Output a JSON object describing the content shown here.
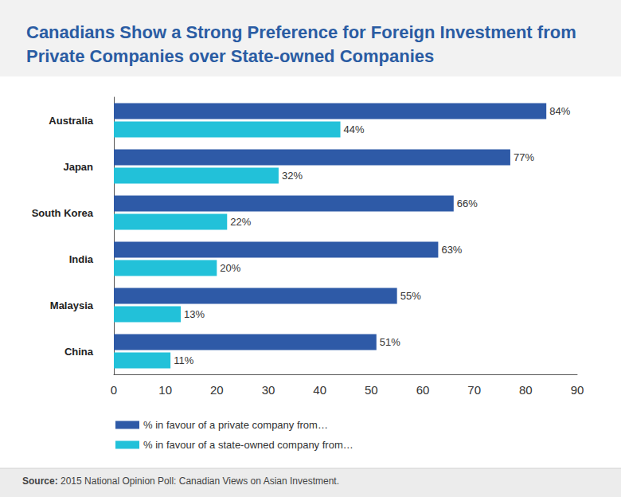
{
  "chart_data": {
    "type": "bar",
    "orientation": "horizontal",
    "title": "Canadians Show a Strong Preference for Foreign Investment from Private Companies over State-owned Companies",
    "categories": [
      "Australia",
      "Japan",
      "South Korea",
      "India",
      "Malaysia",
      "China"
    ],
    "series": [
      {
        "name": "% in favour of a private company from…",
        "color": "#2e5aa7",
        "values": [
          84,
          77,
          66,
          63,
          55,
          51
        ],
        "value_labels": [
          "84%",
          "77%",
          "66%",
          "63%",
          "55%",
          "51%"
        ]
      },
      {
        "name": "% in favour of a state-owned company from…",
        "color": "#22c1d9",
        "values": [
          44,
          32,
          22,
          20,
          13,
          11
        ],
        "value_labels": [
          "44%",
          "32%",
          "22%",
          "20%",
          "13%",
          "11%"
        ]
      }
    ],
    "xlim": [
      0,
      90
    ],
    "xticks": [
      0,
      10,
      20,
      30,
      40,
      50,
      60,
      70,
      80,
      90
    ],
    "grid": false,
    "data_labels": true,
    "legend": "bottom-left",
    "source": "Source: 2015 National Opinion Poll: Canadian Views on Asian Investment."
  }
}
